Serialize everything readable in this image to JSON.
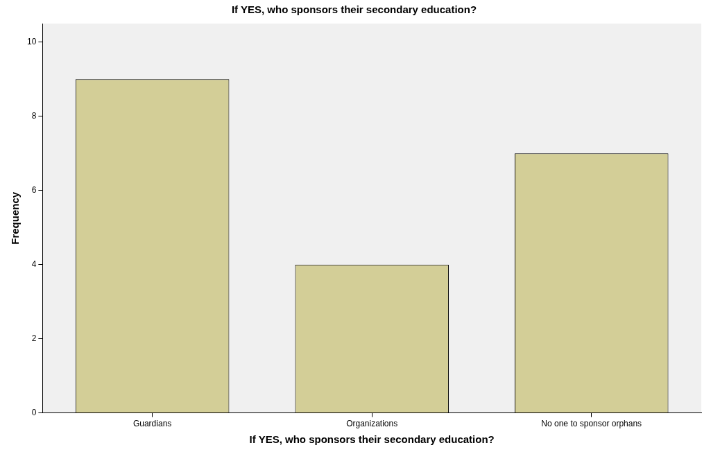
{
  "chart_data": {
    "type": "bar",
    "title": "If YES, who sponsors their secondary education?",
    "xlabel": "If YES, who sponsors their secondary education?",
    "ylabel": "Frequency",
    "categories": [
      "Guardians",
      "Organizations",
      "No one to sponsor orphans"
    ],
    "values": [
      9,
      4,
      7
    ],
    "color": "#d3ce97",
    "ylim": [
      0,
      10.5
    ],
    "yticks": [
      0,
      2,
      4,
      6,
      8,
      10
    ],
    "grid": false,
    "legend": false
  }
}
